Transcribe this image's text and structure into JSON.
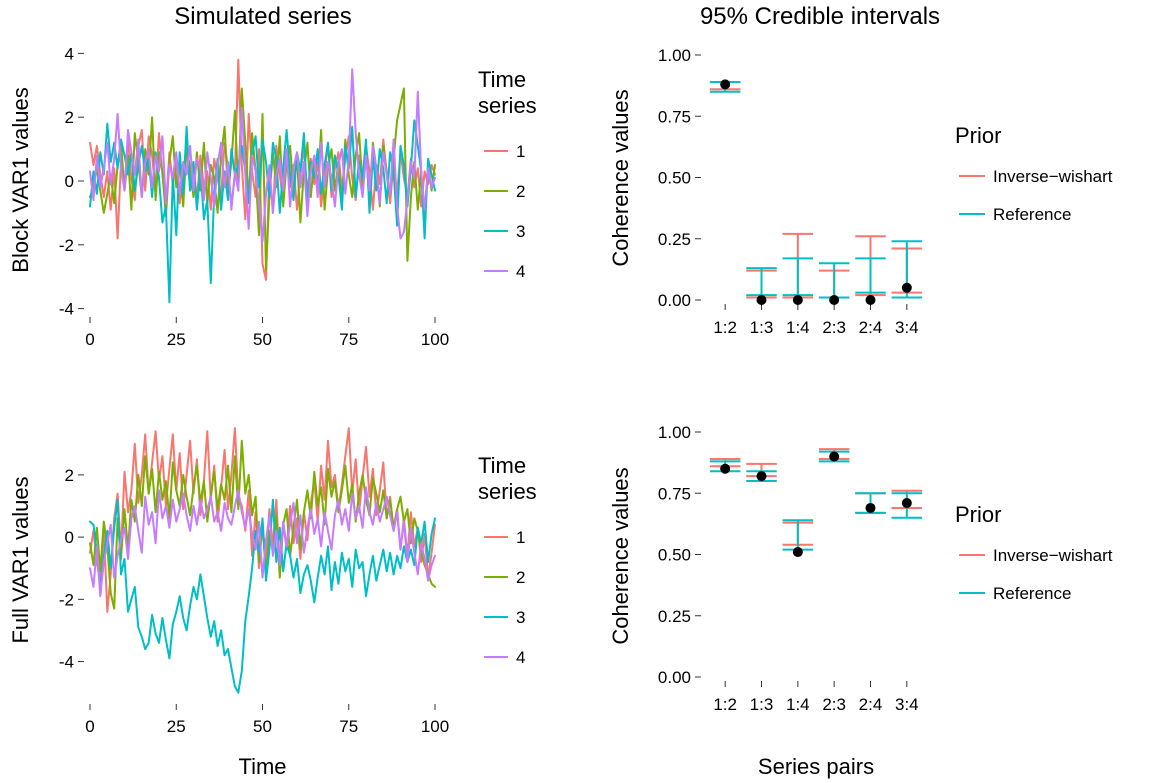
{
  "chart_data": [
    {
      "type": "line",
      "title": "Simulated series",
      "xlabel": "",
      "ylabel": "Block VAR1 values",
      "xlim": [
        0,
        100
      ],
      "ylim": [
        -4.2,
        4.2
      ],
      "xticks": [
        0,
        25,
        50,
        75,
        100
      ],
      "yticks": [
        -4,
        -2,
        0,
        2,
        4
      ],
      "legend": {
        "title": "Time series",
        "title_lines": [
          "Time",
          "series"
        ],
        "position": "right",
        "entries": [
          "1",
          "2",
          "3",
          "4"
        ]
      },
      "colors": [
        "#F8766D",
        "#7CAE00",
        "#00BFC4",
        "#C77CFF"
      ],
      "series": [
        {
          "name": "1",
          "values": [
            1.2,
            0.5,
            1.1,
            0.2,
            -0.5,
            0.3,
            -0.9,
            0.4,
            -1.8,
            0.6,
            -0.2,
            1.3,
            0.1,
            -0.6,
            1.1,
            1.6,
            -0.3,
            1.4,
            0.8,
            -0.4,
            1.5,
            0.2,
            -0.8,
            0.9,
            -0.1,
            0.6,
            -0.7,
            0.2,
            1.1,
            -0.3,
            0.5,
            -0.6,
            0.8,
            -0.2,
            0.3,
            -0.9,
            0.7,
            0.1,
            -0.5,
            1.2,
            0.4,
            -0.8,
            0.2,
            3.8,
            0.5,
            -1.2,
            2.1,
            0.3,
            -0.5,
            1.0,
            -2.6,
            -3.1,
            0.4,
            -1.0,
            1.1,
            0.2,
            -0.7,
            0.9,
            -0.2,
            0.5,
            -0.9,
            0.3,
            1.0,
            -0.4,
            0.7,
            -0.1,
            0.6,
            -0.8,
            0.2,
            1.2,
            -0.5,
            0.4,
            0.9,
            -0.3,
            0.7,
            1.4,
            0.1,
            -0.6,
            0.8,
            -0.2,
            1.1,
            0.3,
            -0.9,
            0.5,
            -0.1,
            1.3,
            0.2,
            -0.7,
            0.6,
            -0.4,
            0.9,
            0.1,
            -0.5,
            0.7,
            -0.2,
            0.4,
            -0.8,
            0.3,
            -0.1,
            0.5,
            0.2
          ]
        },
        {
          "name": "2",
          "values": [
            -0.5,
            -0.2,
            0.4,
            -0.3,
            -1.0,
            -0.4,
            0.2,
            -0.7,
            0.5,
            1.2,
            -0.3,
            0.8,
            -0.9,
            1.5,
            0.6,
            -0.5,
            1.0,
            0.2,
            2.0,
            -0.6,
            0.9,
            0.3,
            -1.1,
            0.6,
            1.4,
            -0.2,
            0.7,
            -0.8,
            1.1,
            0.4,
            -0.5,
            0.9,
            -0.3,
            1.2,
            -0.7,
            0.5,
            0.1,
            -1.0,
            0.8,
            1.7,
            -0.4,
            0.6,
            2.2,
            -0.3,
            2.9,
            1.2,
            -0.6,
            1.5,
            0.3,
            -1.7,
            2.1,
            -2.8,
            -0.5,
            0.9,
            -0.2,
            1.4,
            -0.8,
            0.6,
            1.1,
            -0.4,
            0.8,
            -1.3,
            0.3,
            1.2,
            -0.5,
            0.7,
            -0.2,
            1.6,
            -0.9,
            0.4,
            1.0,
            -0.3,
            0.6,
            -0.7,
            1.3,
            0.2,
            -0.5,
            0.8,
            1.5,
            -0.2,
            0.9,
            -0.6,
            1.2,
            0.4,
            -0.8,
            1.1,
            0.3,
            -0.4,
            0.7,
            1.9,
            2.4,
            2.9,
            -2.5,
            -0.5,
            0.6,
            -0.9,
            0.3,
            -1.2,
            0.5,
            -0.3,
            0.5
          ]
        },
        {
          "name": "3",
          "values": [
            -0.8,
            0.3,
            -0.4,
            0.9,
            0.2,
            1.8,
            0.6,
            1.2,
            0.4,
            1.3,
            0.8,
            0.2,
            0.9,
            -0.3,
            0.5,
            1.1,
            0.3,
            0.7,
            -0.5,
            0.9,
            0.1,
            -1.3,
            -0.8,
            -3.8,
            0.2,
            -1.7,
            0.9,
            -0.4,
            1.7,
            -0.3,
            0.6,
            -0.9,
            0.4,
            -1.2,
            -0.6,
            -3.2,
            -0.4,
            0.7,
            -0.9,
            0.3,
            -0.6,
            1.0,
            0.2,
            0.5,
            1.1,
            0.3,
            -0.7,
            0.8,
            1.4,
            -0.2,
            1.3,
            0.6,
            -0.5,
            1.2,
            0.7,
            -1.0,
            0.4,
            1.6,
            0.2,
            -0.6,
            0.9,
            0.3,
            1.5,
            -0.8,
            0.6,
            0.1,
            1.0,
            -0.4,
            0.5,
            1.2,
            -0.3,
            0.8,
            0.2,
            -0.9,
            1.1,
            0.4,
            1.7,
            -0.5,
            0.6,
            0.1,
            1.3,
            -1.0,
            0.8,
            -0.3,
            1.0,
            0.4,
            -0.7,
            0.9,
            0.3,
            -1.4,
            1.1,
            0.5,
            -0.8,
            0.4,
            1.9,
            1.1,
            0.3,
            -1.8,
            0.7,
            0.2,
            -0.3
          ]
        },
        {
          "name": "4",
          "values": [
            0.3,
            -0.6,
            0.8,
            -0.2,
            0.4,
            1.2,
            -0.1,
            0.7,
            2.1,
            0.4,
            -0.3,
            1.6,
            0.9,
            0.2,
            1.3,
            -0.5,
            0.6,
            1.0,
            -0.2,
            0.8,
            0.3,
            1.4,
            -0.7,
            0.5,
            0.1,
            0.9,
            -0.4,
            0.6,
            0.2,
            1.1,
            -0.3,
            0.7,
            0.4,
            -0.6,
            0.9,
            0.1,
            -0.8,
            0.5,
            1.2,
            -0.2,
            0.6,
            -0.9,
            0.3,
            -0.3,
            2.3,
            0.2,
            -1.5,
            0.8,
            0.3,
            -0.7,
            -1.9,
            -0.4,
            0.5,
            -1.0,
            0.2,
            0.7,
            -0.3,
            1.0,
            -0.8,
            0.4,
            0.9,
            -0.2,
            0.6,
            -1.1,
            0.3,
            0.8,
            -0.5,
            1.2,
            -0.2,
            0.6,
            0.1,
            -0.8,
            0.5,
            1.0,
            -0.4,
            0.7,
            3.5,
            1.5,
            0.2,
            -0.5,
            0.8,
            -0.3,
            1.1,
            0.4,
            -0.7,
            0.9,
            0.2,
            -0.4,
            1.3,
            -0.8,
            -1.8,
            -1.6,
            -0.6,
            0.6,
            0.1,
            2.8,
            0.3,
            -0.9,
            0.4,
            -0.2,
            0.1
          ]
        }
      ]
    },
    {
      "type": "errorbar",
      "title": "95% Credible intervals",
      "xlabel": "",
      "ylabel": "Coherence values",
      "categories": [
        "1:2",
        "1:3",
        "1:4",
        "2:3",
        "2:4",
        "3:4"
      ],
      "ylim": [
        0,
        1
      ],
      "yticks": [
        "0.00",
        "0.25",
        "0.50",
        "0.75",
        "1.00"
      ],
      "legend": {
        "title": "Prior",
        "position": "right",
        "entries": [
          "Inverse−wishart",
          "Reference"
        ]
      },
      "colors": {
        "Inverse−wishart": "#F8766D",
        "Reference": "#00BFC4",
        "truth": "#000000"
      },
      "truth": [
        0.88,
        0.0,
        0.0,
        0.0,
        0.0,
        0.05
      ],
      "series": [
        {
          "name": "Inverse−wishart",
          "lower": [
            0.86,
            0.01,
            0.01,
            0.01,
            0.02,
            0.03
          ],
          "upper": [
            0.89,
            0.12,
            0.27,
            0.12,
            0.26,
            0.21
          ]
        },
        {
          "name": "Reference",
          "lower": [
            0.85,
            0.02,
            0.02,
            0.01,
            0.03,
            0.01
          ],
          "upper": [
            0.89,
            0.13,
            0.17,
            0.15,
            0.17,
            0.24
          ]
        }
      ]
    },
    {
      "type": "line",
      "title": "",
      "xlabel": "Time",
      "ylabel": "Full VAR1 values",
      "xlim": [
        0,
        100
      ],
      "ylim": [
        -5.3,
        3.7
      ],
      "xticks": [
        0,
        25,
        50,
        75,
        100
      ],
      "yticks": [
        -4,
        -2,
        0,
        2
      ],
      "legend": {
        "title": "Time series",
        "title_lines": [
          "Time",
          "series"
        ],
        "position": "right",
        "entries": [
          "1",
          "2",
          "3",
          "4"
        ]
      },
      "colors": [
        "#F8766D",
        "#7CAE00",
        "#00BFC4",
        "#C77CFF"
      ],
      "series": [
        {
          "name": "1",
          "values": [
            -0.5,
            0.2,
            -0.8,
            -1.5,
            0.3,
            -2.4,
            -1.2,
            0.6,
            1.4,
            -0.5,
            2.1,
            0.8,
            1.5,
            3.0,
            1.1,
            2.0,
            3.3,
            1.4,
            2.4,
            3.4,
            1.8,
            2.6,
            1.0,
            2.2,
            3.3,
            1.5,
            2.7,
            0.9,
            2.0,
            3.1,
            1.4,
            2.5,
            0.7,
            1.8,
            3.4,
            1.2,
            2.3,
            0.5,
            1.6,
            2.8,
            0.9,
            2.0,
            3.5,
            1.3,
            1.0,
            0.2,
            1.5,
            -0.6,
            0.8,
            -1.0,
            0.4,
            -0.8,
            0.9,
            -0.3,
            1.2,
            -0.9,
            0.5,
            -0.4,
            1.0,
            -0.2,
            0.6,
            -0.7,
            0.8,
            -0.1,
            1.1,
            1.8,
            0.5,
            2.3,
            1.2,
            3.1,
            1.6,
            2.0,
            0.9,
            1.7,
            2.6,
            3.5,
            1.4,
            2.5,
            0.8,
            1.9,
            2.9,
            1.3,
            2.2,
            0.7,
            1.5,
            2.4,
            0.6,
            1.3,
            0.2,
            0.9,
            -0.4,
            0.6,
            -0.6,
            0.8,
            -0.3,
            0.3,
            -0.8,
            0.1,
            -1.3,
            -0.5,
            0.4
          ]
        },
        {
          "name": "2",
          "values": [
            -0.2,
            -0.9,
            0.3,
            -1.1,
            0.5,
            -0.3,
            -1.8,
            -2.3,
            0.6,
            -0.7,
            0.9,
            -0.4,
            1.2,
            0.5,
            2.0,
            1.0,
            2.6,
            1.4,
            2.2,
            0.8,
            2.1,
            1.2,
            1.8,
            0.6,
            2.4,
            1.5,
            1.0,
            2.0,
            1.3,
            0.7,
            1.6,
            2.3,
            1.1,
            1.8,
            0.5,
            1.4,
            2.1,
            0.9,
            1.7,
            1.2,
            2.3,
            0.8,
            2.6,
            0.9,
            3.1,
            1.4,
            2.0,
            0.7,
            1.3,
            -0.8,
            0.5,
            -1.2,
            0.2,
            -0.5,
            0.7,
            -1.3,
            0.4,
            0.9,
            -0.6,
            0.3,
            1.2,
            -0.4,
            0.8,
            1.5,
            0.6,
            2.1,
            1.0,
            1.6,
            0.4,
            2.2,
            1.3,
            1.8,
            0.8,
            1.5,
            2.3,
            1.1,
            1.7,
            0.5,
            1.4,
            2.0,
            1.2,
            0.7,
            1.9,
            1.4,
            0.8,
            1.5,
            0.6,
            1.2,
            0.3,
            0.9,
            1.3,
            0.5,
            0.9,
            -0.2,
            0.6,
            0.2,
            -0.5,
            -0.9,
            -1.2,
            -1.5,
            -1.6
          ]
        },
        {
          "name": "3",
          "values": [
            0.5,
            0.4,
            -0.5,
            -1.7,
            -0.6,
            0.2,
            -1.0,
            0.3,
            1.2,
            -1.2,
            -0.7,
            -2.4,
            -2.0,
            -1.6,
            -2.9,
            -3.2,
            -3.6,
            -3.4,
            -2.5,
            -3.1,
            -3.4,
            -2.6,
            -3.3,
            -3.9,
            -2.8,
            -2.4,
            -1.9,
            -2.6,
            -3.0,
            -2.2,
            -1.6,
            -2.0,
            -1.2,
            -1.9,
            -2.6,
            -3.2,
            -2.7,
            -3.5,
            -3.0,
            -3.8,
            -3.6,
            -4.2,
            -4.8,
            -5.0,
            -4.3,
            -2.7,
            -1.9,
            -1.0,
            0.2,
            -0.5,
            0.6,
            -1.4,
            -0.4,
            1.2,
            -0.8,
            0.3,
            -1.1,
            -0.2,
            -0.6,
            -1.3,
            -0.7,
            -1.8,
            -1.2,
            -0.9,
            -1.4,
            -2.1,
            -1.3,
            -0.6,
            -1.2,
            -0.3,
            -1.7,
            -0.8,
            -1.5,
            -0.5,
            -1.1,
            -0.7,
            -1.6,
            -0.4,
            -1.0,
            -0.8,
            -1.9,
            -1.2,
            -0.6,
            -1.4,
            -0.9,
            -0.4,
            -1.1,
            -0.5,
            -1.2,
            -0.6,
            -1.0,
            -0.3,
            -0.8,
            -0.4,
            -0.9,
            0.3,
            -0.2,
            0.5,
            -0.8,
            0.1,
            0.6
          ]
        },
        {
          "name": "4",
          "values": [
            -1.0,
            -1.6,
            -0.3,
            -1.9,
            -0.8,
            -0.2,
            0.4,
            -1.3,
            -0.6,
            -0.1,
            0.3,
            -0.7,
            0.6,
            1.0,
            0.2,
            -0.5,
            1.3,
            0.4,
            0.8,
            -0.2,
            1.5,
            0.6,
            1.0,
            0.3,
            1.2,
            0.5,
            0.9,
            1.4,
            0.7,
            0.2,
            1.0,
            0.4,
            1.2,
            0.6,
            0.9,
            1.3,
            0.5,
            0.8,
            0.2,
            1.1,
            0.6,
            0.4,
            1.0,
            1.5,
            0.8,
            0.3,
            0.9,
            0.1,
            -0.4,
            0.5,
            -1.3,
            -0.1,
            0.7,
            -0.6,
            0.2,
            -0.9,
            0.5,
            -0.3,
            0.4,
            1.1,
            -0.2,
            0.7,
            -0.5,
            0.3,
            0.9,
            0.1,
            0.6,
            -0.3,
            0.8,
            0.2,
            -0.4,
            0.7,
            1.2,
            0.4,
            0.9,
            0.2,
            1.4,
            0.6,
            1.0,
            0.3,
            1.6,
            0.8,
            0.4,
            1.1,
            0.5,
            0.9,
            1.3,
            0.7,
            0.2,
            0.8,
            -0.4,
            0.5,
            -0.8,
            0.3,
            -0.5,
            -1.2,
            -0.2,
            -0.7,
            -1.4,
            -0.9,
            -0.6
          ]
        }
      ]
    },
    {
      "type": "errorbar",
      "title": "",
      "xlabel": "Series pairs",
      "ylabel": "Coherence values",
      "categories": [
        "1:2",
        "1:3",
        "1:4",
        "2:3",
        "2:4",
        "3:4"
      ],
      "ylim": [
        0,
        1
      ],
      "yticks": [
        "0.00",
        "0.25",
        "0.50",
        "0.75",
        "1.00"
      ],
      "legend": {
        "title": "Prior",
        "position": "right",
        "entries": [
          "Inverse−wishart",
          "Reference"
        ]
      },
      "colors": {
        "Inverse−wishart": "#F8766D",
        "Reference": "#00BFC4",
        "truth": "#000000"
      },
      "truth": [
        0.85,
        0.82,
        0.51,
        0.9,
        0.69,
        0.71
      ],
      "series": [
        {
          "name": "Inverse−wishart",
          "lower": [
            0.86,
            0.82,
            0.54,
            0.89,
            0.67,
            0.69
          ],
          "upper": [
            0.89,
            0.87,
            0.63,
            0.93,
            0.75,
            0.76
          ]
        },
        {
          "name": "Reference",
          "lower": [
            0.84,
            0.8,
            0.52,
            0.88,
            0.67,
            0.65
          ],
          "upper": [
            0.88,
            0.84,
            0.64,
            0.92,
            0.75,
            0.75
          ]
        }
      ]
    }
  ]
}
